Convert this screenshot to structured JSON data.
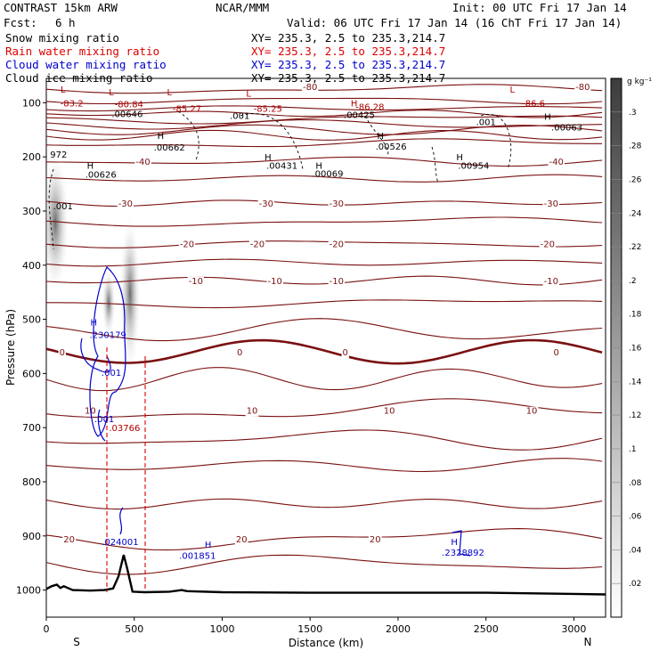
{
  "header": {
    "model": "CONTRAST 15km ARW",
    "org": "NCAR/MMM",
    "init": "Init: 00 UTC Fri 17 Jan 14",
    "fcst_label": "Fcst:",
    "fcst_value": "6 h",
    "valid": "Valid: 06 UTC Fri 17 Jan 14 (16 ChT Fri 17 Jan 14)"
  },
  "legend": [
    {
      "name": "Snow mixing ratio",
      "xy": "XY= 235.3, 2.5 to 235.3,214.7",
      "color": "#000000"
    },
    {
      "name": "Rain water mixing ratio",
      "xy": "XY= 235.3, 2.5 to 235.3,214.7",
      "color": "#dd0000"
    },
    {
      "name": "Cloud water mixing ratio",
      "xy": "XY= 235.3, 2.5 to 235.3,214.7",
      "color": "#0000cc"
    },
    {
      "name": "Cloud ice mixing ratio",
      "xy": "XY= 235.3, 2.5 to 235.3,214.7",
      "color": "#000000"
    }
  ],
  "colorbar": {
    "unit": "g kg⁻¹",
    "ticks": [
      ".02",
      ".04",
      ".06",
      ".08",
      ".1",
      ".12",
      ".14",
      ".16",
      ".18",
      ".2",
      ".22",
      ".24",
      ".26",
      ".28",
      ".3"
    ]
  },
  "chart_data": {
    "type": "contour cross-section",
    "xlabel": "Distance (km)",
    "ylabel": "Pressure (hPa)",
    "xlim": [
      0,
      3180
    ],
    "ylim": [
      1050,
      55
    ],
    "x_ticks": [
      0,
      500,
      1000,
      1500,
      2000,
      2500,
      3000
    ],
    "y_ticks": [
      100,
      200,
      300,
      400,
      500,
      600,
      700,
      800,
      900,
      1000
    ],
    "x_end_labels": {
      "left": "S",
      "right": "N"
    },
    "temperature_contours": [
      {
        "value": -80,
        "label": "-80",
        "p": 70
      },
      {
        "value": -40,
        "label": "-40",
        "p": 208
      },
      {
        "value": -30,
        "label": "-30",
        "p": 285
      },
      {
        "value": -20,
        "label": "-20",
        "p": 360
      },
      {
        "value": -10,
        "label": "-10",
        "p": 428
      },
      {
        "value": 0,
        "label": "0",
        "p": 560
      },
      {
        "value": 10,
        "label": "10",
        "p": 668
      },
      {
        "value": 20,
        "label": "20",
        "p": 905
      }
    ],
    "annotations": [
      {
        "text": "L",
        "x": 95,
        "p": 75,
        "color": "red"
      },
      {
        "text": "-83.2",
        "x": 145,
        "p": 100,
        "color": "red"
      },
      {
        "text": "L",
        "x": 370,
        "p": 80,
        "color": "red"
      },
      {
        "text": "-80.84",
        "x": 470,
        "p": 102,
        "color": "red"
      },
      {
        "text": "L",
        "x": 700,
        "p": 80,
        "color": "red"
      },
      {
        "text": "-85.27",
        "x": 800,
        "p": 110,
        "color": "red"
      },
      {
        "text": "L",
        "x": 1150,
        "p": 82,
        "color": "red"
      },
      {
        "text": "-85.25",
        "x": 1260,
        "p": 110,
        "color": "red"
      },
      {
        "text": "H",
        "x": 1750,
        "p": 100,
        "color": "red"
      },
      {
        "text": "-86.28",
        "x": 1840,
        "p": 107,
        "color": "red"
      },
      {
        "text": "L",
        "x": 2650,
        "p": 75,
        "color": "red"
      },
      {
        "text": "-86.6",
        "x": 2770,
        "p": 100,
        "color": "red"
      },
      {
        "text": ".00646",
        "x": 460,
        "p": 120,
        "color": "black"
      },
      {
        "text": ".001",
        "x": 1100,
        "p": 123,
        "color": "black"
      },
      {
        "text": ".00425",
        "x": 1780,
        "p": 122,
        "color": "black"
      },
      {
        "text": "H",
        "x": 650,
        "p": 160,
        "color": "black"
      },
      {
        "text": ".00662",
        "x": 700,
        "p": 182,
        "color": "black"
      },
      {
        "text": "H",
        "x": 1900,
        "p": 160,
        "color": "black"
      },
      {
        "text": ".00526",
        "x": 1960,
        "p": 180,
        "color": "black"
      },
      {
        "text": ".001",
        "x": 2500,
        "p": 135,
        "color": "black"
      },
      {
        "text": "H",
        "x": 2850,
        "p": 125,
        "color": "black"
      },
      {
        "text": ".00063",
        "x": 2960,
        "p": 145,
        "color": "black"
      },
      {
        "text": "972",
        "x": 70,
        "p": 195,
        "color": "black"
      },
      {
        "text": "H",
        "x": 250,
        "p": 215,
        "color": "black"
      },
      {
        "text": ".00626",
        "x": 310,
        "p": 232,
        "color": "black"
      },
      {
        "text": "H",
        "x": 1260,
        "p": 200,
        "color": "black"
      },
      {
        "text": ".00431",
        "x": 1340,
        "p": 215,
        "color": "black"
      },
      {
        "text": "H",
        "x": 1550,
        "p": 215,
        "color": "black"
      },
      {
        "text": ".00069",
        "x": 1600,
        "p": 230,
        "color": "black"
      },
      {
        "text": "H",
        "x": 2350,
        "p": 200,
        "color": "black"
      },
      {
        "text": ".00954",
        "x": 2430,
        "p": 215,
        "color": "black"
      },
      {
        "text": ".001",
        "x": 95,
        "p": 290,
        "color": "black"
      },
      {
        "text": "H",
        "x": 270,
        "p": 505,
        "color": "blue"
      },
      {
        "text": ".230179",
        "x": 350,
        "p": 528,
        "color": "blue"
      },
      {
        "text": ".001",
        "x": 370,
        "p": 598,
        "color": "blue"
      },
      {
        "text": ".001",
        "x": 330,
        "p": 683,
        "color": "blue"
      },
      {
        "text": ".03766",
        "x": 445,
        "p": 700,
        "color": "red"
      },
      {
        "text": ".024001",
        "x": 420,
        "p": 910,
        "color": "blue"
      },
      {
        "text": "H",
        "x": 920,
        "p": 915,
        "color": "blue"
      },
      {
        "text": ".001851",
        "x": 860,
        "p": 936,
        "color": "blue"
      },
      {
        "text": "H",
        "x": 2320,
        "p": 910,
        "color": "blue"
      },
      {
        "text": ".2328892",
        "x": 2370,
        "p": 930,
        "color": "blue"
      }
    ],
    "terrain_surface": [
      [
        0,
        998
      ],
      [
        30,
        993
      ],
      [
        60,
        990
      ],
      [
        80,
        996
      ],
      [
        100,
        993
      ],
      [
        150,
        1000
      ],
      [
        250,
        1001
      ],
      [
        330,
        1000
      ],
      [
        380,
        997
      ],
      [
        410,
        975
      ],
      [
        440,
        935
      ],
      [
        460,
        960
      ],
      [
        490,
        1003
      ],
      [
        560,
        1004
      ],
      [
        700,
        1003
      ],
      [
        770,
        1000
      ],
      [
        800,
        1002
      ],
      [
        1000,
        1004
      ],
      [
        1500,
        1005
      ],
      [
        2000,
        1005
      ],
      [
        2500,
        1005
      ],
      [
        3000,
        1007
      ],
      [
        3180,
        1008
      ]
    ]
  }
}
